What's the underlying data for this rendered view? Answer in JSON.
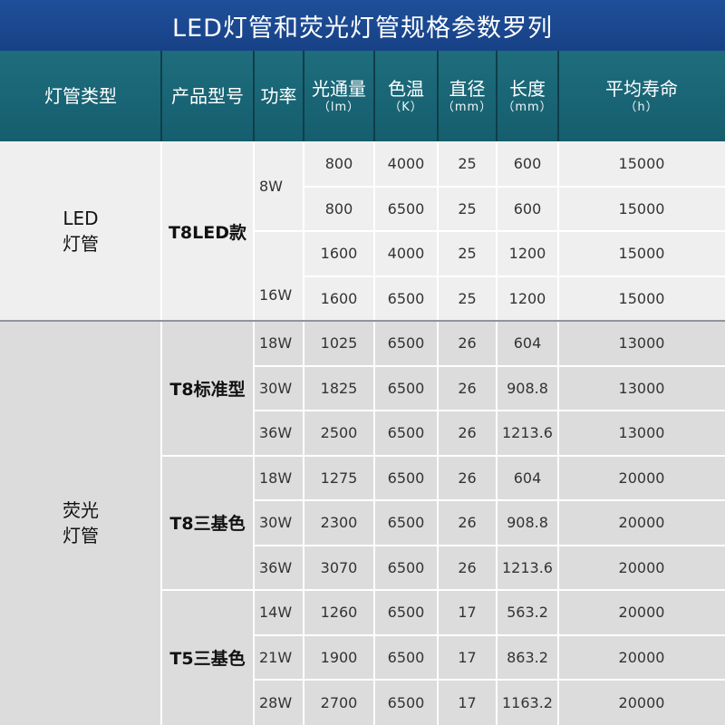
{
  "title": "LED灯管和荧光灯管规格参数罗列",
  "headers": {
    "type": "灯管类型",
    "model": "产品型号",
    "power": "功率",
    "lumen": "光通量",
    "lumen_unit": "（lm）",
    "cct": "色温",
    "cct_unit": "（K）",
    "diameter": "直径",
    "diameter_unit": "（mm）",
    "length": "长度",
    "length_unit": "（mm）",
    "life": "平均寿命",
    "life_unit": "（h）"
  },
  "types": [
    {
      "name": "LED\n灯管",
      "bg": "#efefef"
    },
    {
      "name": "荧光\n灯管",
      "bg": "#dcdcdc"
    }
  ],
  "models": [
    "T8LED款",
    "T8标准型",
    "T8三基色",
    "T5三基色"
  ],
  "led_powers": [
    "8W",
    "16W"
  ],
  "rows": [
    {
      "power": "",
      "lumen": "800",
      "cct": "4000",
      "diameter": "25",
      "length": "600",
      "life": "15000"
    },
    {
      "power": "",
      "lumen": "800",
      "cct": "6500",
      "diameter": "25",
      "length": "600",
      "life": "15000"
    },
    {
      "power": "",
      "lumen": "1600",
      "cct": "4000",
      "diameter": "25",
      "length": "1200",
      "life": "15000"
    },
    {
      "power": "",
      "lumen": "1600",
      "cct": "6500",
      "diameter": "25",
      "length": "1200",
      "life": "15000"
    },
    {
      "power": "18W",
      "lumen": "1025",
      "cct": "6500",
      "diameter": "26",
      "length": "604",
      "life": "13000"
    },
    {
      "power": "30W",
      "lumen": "1825",
      "cct": "6500",
      "diameter": "26",
      "length": "908.8",
      "life": "13000"
    },
    {
      "power": "36W",
      "lumen": "2500",
      "cct": "6500",
      "diameter": "26",
      "length": "1213.6",
      "life": "13000"
    },
    {
      "power": "18W",
      "lumen": "1275",
      "cct": "6500",
      "diameter": "26",
      "length": "604",
      "life": "20000"
    },
    {
      "power": "30W",
      "lumen": "2300",
      "cct": "6500",
      "diameter": "26",
      "length": "908.8",
      "life": "20000"
    },
    {
      "power": "36W",
      "lumen": "3070",
      "cct": "6500",
      "diameter": "26",
      "length": "1213.6",
      "life": "20000"
    },
    {
      "power": "14W",
      "lumen": "1260",
      "cct": "6500",
      "diameter": "17",
      "length": "563.2",
      "life": "20000"
    },
    {
      "power": "21W",
      "lumen": "1900",
      "cct": "6500",
      "diameter": "17",
      "length": "863.2",
      "life": "20000"
    },
    {
      "power": "28W",
      "lumen": "2700",
      "cct": "6500",
      "diameter": "17",
      "length": "1163.2",
      "life": "20000"
    }
  ]
}
